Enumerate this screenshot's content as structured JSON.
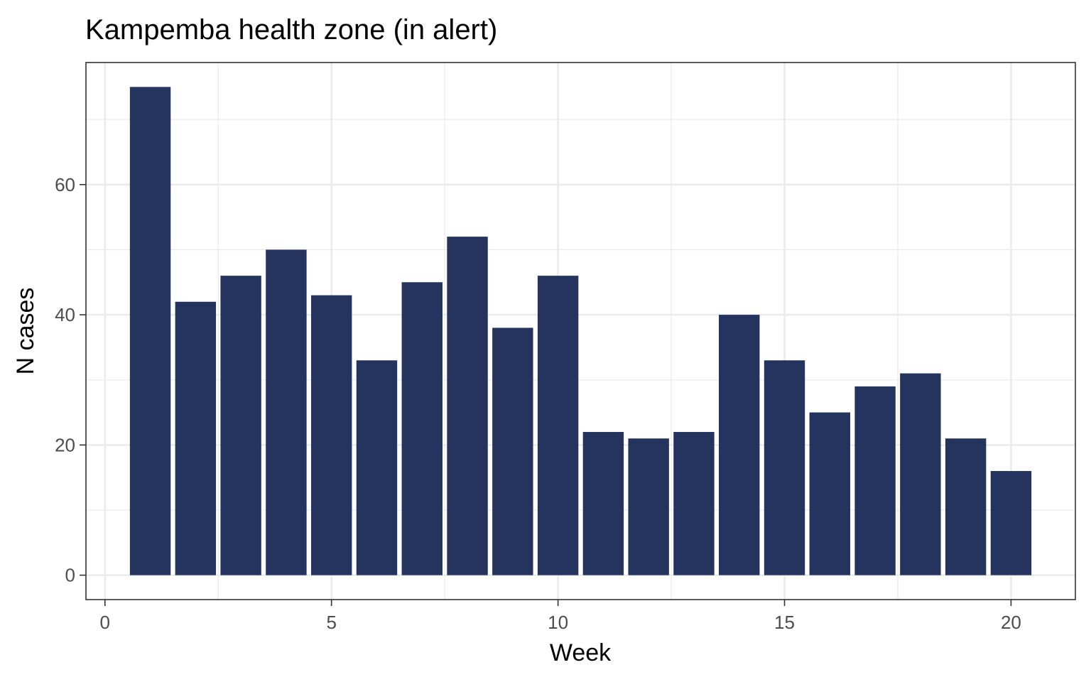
{
  "chart_data": {
    "type": "bar",
    "title": "Kampemba health zone (in alert)",
    "xlabel": "Week",
    "ylabel": "N cases",
    "x": [
      1,
      2,
      3,
      4,
      5,
      6,
      7,
      8,
      9,
      10,
      11,
      12,
      13,
      14,
      15,
      16,
      17,
      18,
      19,
      20
    ],
    "values": [
      75,
      42,
      46,
      50,
      43,
      33,
      45,
      52,
      38,
      46,
      22,
      21,
      22,
      40,
      33,
      25,
      29,
      31,
      21,
      16
    ],
    "xlim": [
      -0.42,
      21.42
    ],
    "ylim": [
      -3.75,
      78.75
    ],
    "x_ticks": [
      0,
      5,
      10,
      15,
      20
    ],
    "x_tick_labels": [
      "0",
      "5",
      "10",
      "15",
      "20"
    ],
    "y_ticks": [
      0,
      20,
      40,
      60
    ],
    "y_tick_labels": [
      "0",
      "20",
      "40",
      "60"
    ],
    "grid": true,
    "legend": "none",
    "bar_width": 0.9,
    "colors": {
      "bar": "#24345E",
      "panel_background": "#FFFFFF",
      "grid": "#EBEBEB",
      "border": "#333333"
    }
  }
}
